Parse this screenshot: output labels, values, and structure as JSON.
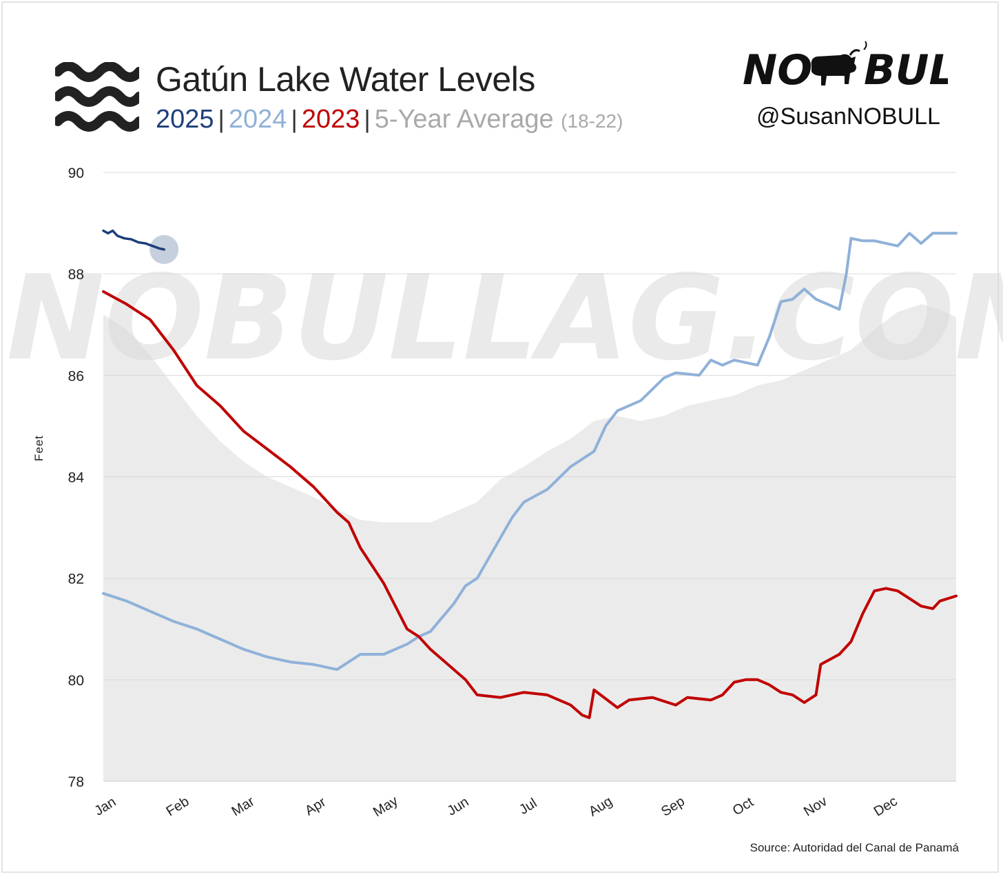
{
  "header": {
    "title": "Gatún Lake Water Levels",
    "legend": {
      "y2025": "2025",
      "y2024": "2024",
      "y2023": "2023",
      "avg": "5-Year Average",
      "avg_range": "(18-22)",
      "separator": "|"
    }
  },
  "brand": {
    "logo_text_left": "NO",
    "logo_text_right": "BULL",
    "handle": "@SusanNOBULL",
    "watermark": "NOBULLAG.COM"
  },
  "source": "Source: Autoridad del Canal de Panamá",
  "colors": {
    "y2025": "#1d3f7a",
    "y2024": "#8fb1d9",
    "y2023": "#c00000",
    "avg_fill": "#ebebeb",
    "grid": "#d9d9d9"
  },
  "icons": {
    "waves": "water-waves-icon",
    "bull": "bull-icon"
  },
  "chart_data": {
    "type": "line",
    "title": "Gatún Lake Water Levels",
    "ylabel": "Feet",
    "xlabel": "",
    "ylim": [
      78,
      90
    ],
    "yticks": [
      78,
      80,
      82,
      84,
      86,
      88,
      90
    ],
    "x_unit": "day of year",
    "xlim": [
      0,
      365
    ],
    "xticks": [
      {
        "label": "Jan",
        "day": 0
      },
      {
        "label": "Feb",
        "day": 31
      },
      {
        "label": "Mar",
        "day": 59
      },
      {
        "label": "Apr",
        "day": 90
      },
      {
        "label": "May",
        "day": 120
      },
      {
        "label": "Jun",
        "day": 151
      },
      {
        "label": "Jul",
        "day": 181
      },
      {
        "label": "Aug",
        "day": 212
      },
      {
        "label": "Sep",
        "day": 243
      },
      {
        "label": "Oct",
        "day": 273
      },
      {
        "label": "Nov",
        "day": 304
      },
      {
        "label": "Dec",
        "day": 334
      }
    ],
    "grid": true,
    "series": [
      {
        "name": "5-Year Average (18-22)",
        "style": "area",
        "color": "#ebebeb",
        "points": [
          [
            0,
            87.2
          ],
          [
            10,
            86.9
          ],
          [
            20,
            86.4
          ],
          [
            30,
            85.8
          ],
          [
            40,
            85.2
          ],
          [
            50,
            84.7
          ],
          [
            60,
            84.3
          ],
          [
            70,
            84.0
          ],
          [
            80,
            83.8
          ],
          [
            90,
            83.6
          ],
          [
            100,
            83.35
          ],
          [
            110,
            83.15
          ],
          [
            120,
            83.1
          ],
          [
            130,
            83.1
          ],
          [
            140,
            83.1
          ],
          [
            150,
            83.3
          ],
          [
            160,
            83.5
          ],
          [
            170,
            83.95
          ],
          [
            180,
            84.2
          ],
          [
            190,
            84.5
          ],
          [
            200,
            84.75
          ],
          [
            210,
            85.1
          ],
          [
            220,
            85.2
          ],
          [
            230,
            85.1
          ],
          [
            240,
            85.2
          ],
          [
            250,
            85.4
          ],
          [
            260,
            85.5
          ],
          [
            270,
            85.6
          ],
          [
            280,
            85.8
          ],
          [
            290,
            85.9
          ],
          [
            300,
            86.1
          ],
          [
            310,
            86.3
          ],
          [
            320,
            86.5
          ],
          [
            330,
            86.9
          ],
          [
            340,
            87.25
          ],
          [
            350,
            87.4
          ],
          [
            358,
            87.3
          ],
          [
            365,
            87.15
          ]
        ]
      },
      {
        "name": "2023",
        "color": "#c00000",
        "points": [
          [
            0,
            87.65
          ],
          [
            10,
            87.4
          ],
          [
            20,
            87.1
          ],
          [
            30,
            86.5
          ],
          [
            40,
            85.8
          ],
          [
            50,
            85.4
          ],
          [
            60,
            84.9
          ],
          [
            70,
            84.55
          ],
          [
            80,
            84.2
          ],
          [
            90,
            83.8
          ],
          [
            100,
            83.3
          ],
          [
            105,
            83.1
          ],
          [
            110,
            82.6
          ],
          [
            120,
            81.9
          ],
          [
            130,
            81.0
          ],
          [
            135,
            80.85
          ],
          [
            140,
            80.6
          ],
          [
            150,
            80.2
          ],
          [
            155,
            80.0
          ],
          [
            160,
            79.7
          ],
          [
            170,
            79.65
          ],
          [
            180,
            79.75
          ],
          [
            190,
            79.7
          ],
          [
            200,
            79.5
          ],
          [
            205,
            79.3
          ],
          [
            208,
            79.25
          ],
          [
            210,
            79.8
          ],
          [
            220,
            79.45
          ],
          [
            225,
            79.6
          ],
          [
            235,
            79.65
          ],
          [
            245,
            79.5
          ],
          [
            250,
            79.65
          ],
          [
            260,
            79.6
          ],
          [
            265,
            79.7
          ],
          [
            270,
            79.95
          ],
          [
            275,
            80.0
          ],
          [
            280,
            80.0
          ],
          [
            285,
            79.9
          ],
          [
            290,
            79.75
          ],
          [
            295,
            79.7
          ],
          [
            300,
            79.55
          ],
          [
            305,
            79.7
          ],
          [
            307,
            80.3
          ],
          [
            315,
            80.5
          ],
          [
            320,
            80.75
          ],
          [
            325,
            81.3
          ],
          [
            330,
            81.75
          ],
          [
            335,
            81.8
          ],
          [
            340,
            81.75
          ],
          [
            350,
            81.45
          ],
          [
            355,
            81.4
          ],
          [
            358,
            81.55
          ],
          [
            365,
            81.65
          ]
        ]
      },
      {
        "name": "2024",
        "color": "#8fb1d9",
        "points": [
          [
            0,
            81.7
          ],
          [
            10,
            81.55
          ],
          [
            20,
            81.35
          ],
          [
            30,
            81.15
          ],
          [
            40,
            81.0
          ],
          [
            50,
            80.8
          ],
          [
            60,
            80.6
          ],
          [
            70,
            80.45
          ],
          [
            80,
            80.35
          ],
          [
            90,
            80.3
          ],
          [
            100,
            80.2
          ],
          [
            110,
            80.5
          ],
          [
            120,
            80.5
          ],
          [
            130,
            80.7
          ],
          [
            135,
            80.85
          ],
          [
            140,
            80.95
          ],
          [
            150,
            81.5
          ],
          [
            155,
            81.85
          ],
          [
            160,
            82.0
          ],
          [
            170,
            82.8
          ],
          [
            175,
            83.2
          ],
          [
            180,
            83.5
          ],
          [
            190,
            83.75
          ],
          [
            200,
            84.2
          ],
          [
            210,
            84.5
          ],
          [
            215,
            85.0
          ],
          [
            220,
            85.3
          ],
          [
            230,
            85.5
          ],
          [
            240,
            85.95
          ],
          [
            245,
            86.05
          ],
          [
            255,
            86.0
          ],
          [
            260,
            86.3
          ],
          [
            265,
            86.2
          ],
          [
            270,
            86.3
          ],
          [
            275,
            86.25
          ],
          [
            280,
            86.2
          ],
          [
            285,
            86.75
          ],
          [
            290,
            87.45
          ],
          [
            295,
            87.5
          ],
          [
            300,
            87.7
          ],
          [
            305,
            87.5
          ],
          [
            310,
            87.4
          ],
          [
            315,
            87.3
          ],
          [
            318,
            88.0
          ],
          [
            320,
            88.7
          ],
          [
            325,
            88.65
          ],
          [
            330,
            88.65
          ],
          [
            340,
            88.55
          ],
          [
            345,
            88.8
          ],
          [
            350,
            88.6
          ],
          [
            355,
            88.8
          ],
          [
            365,
            88.8
          ]
        ]
      },
      {
        "name": "2025",
        "color": "#1d3f7a",
        "points": [
          [
            0,
            88.85
          ],
          [
            2,
            88.8
          ],
          [
            4,
            88.85
          ],
          [
            6,
            88.75
          ],
          [
            9,
            88.7
          ],
          [
            12,
            88.68
          ],
          [
            15,
            88.62
          ],
          [
            18,
            88.6
          ],
          [
            21,
            88.55
          ],
          [
            24,
            88.5
          ],
          [
            26,
            88.48
          ]
        ],
        "last_point_marker": true
      }
    ]
  }
}
